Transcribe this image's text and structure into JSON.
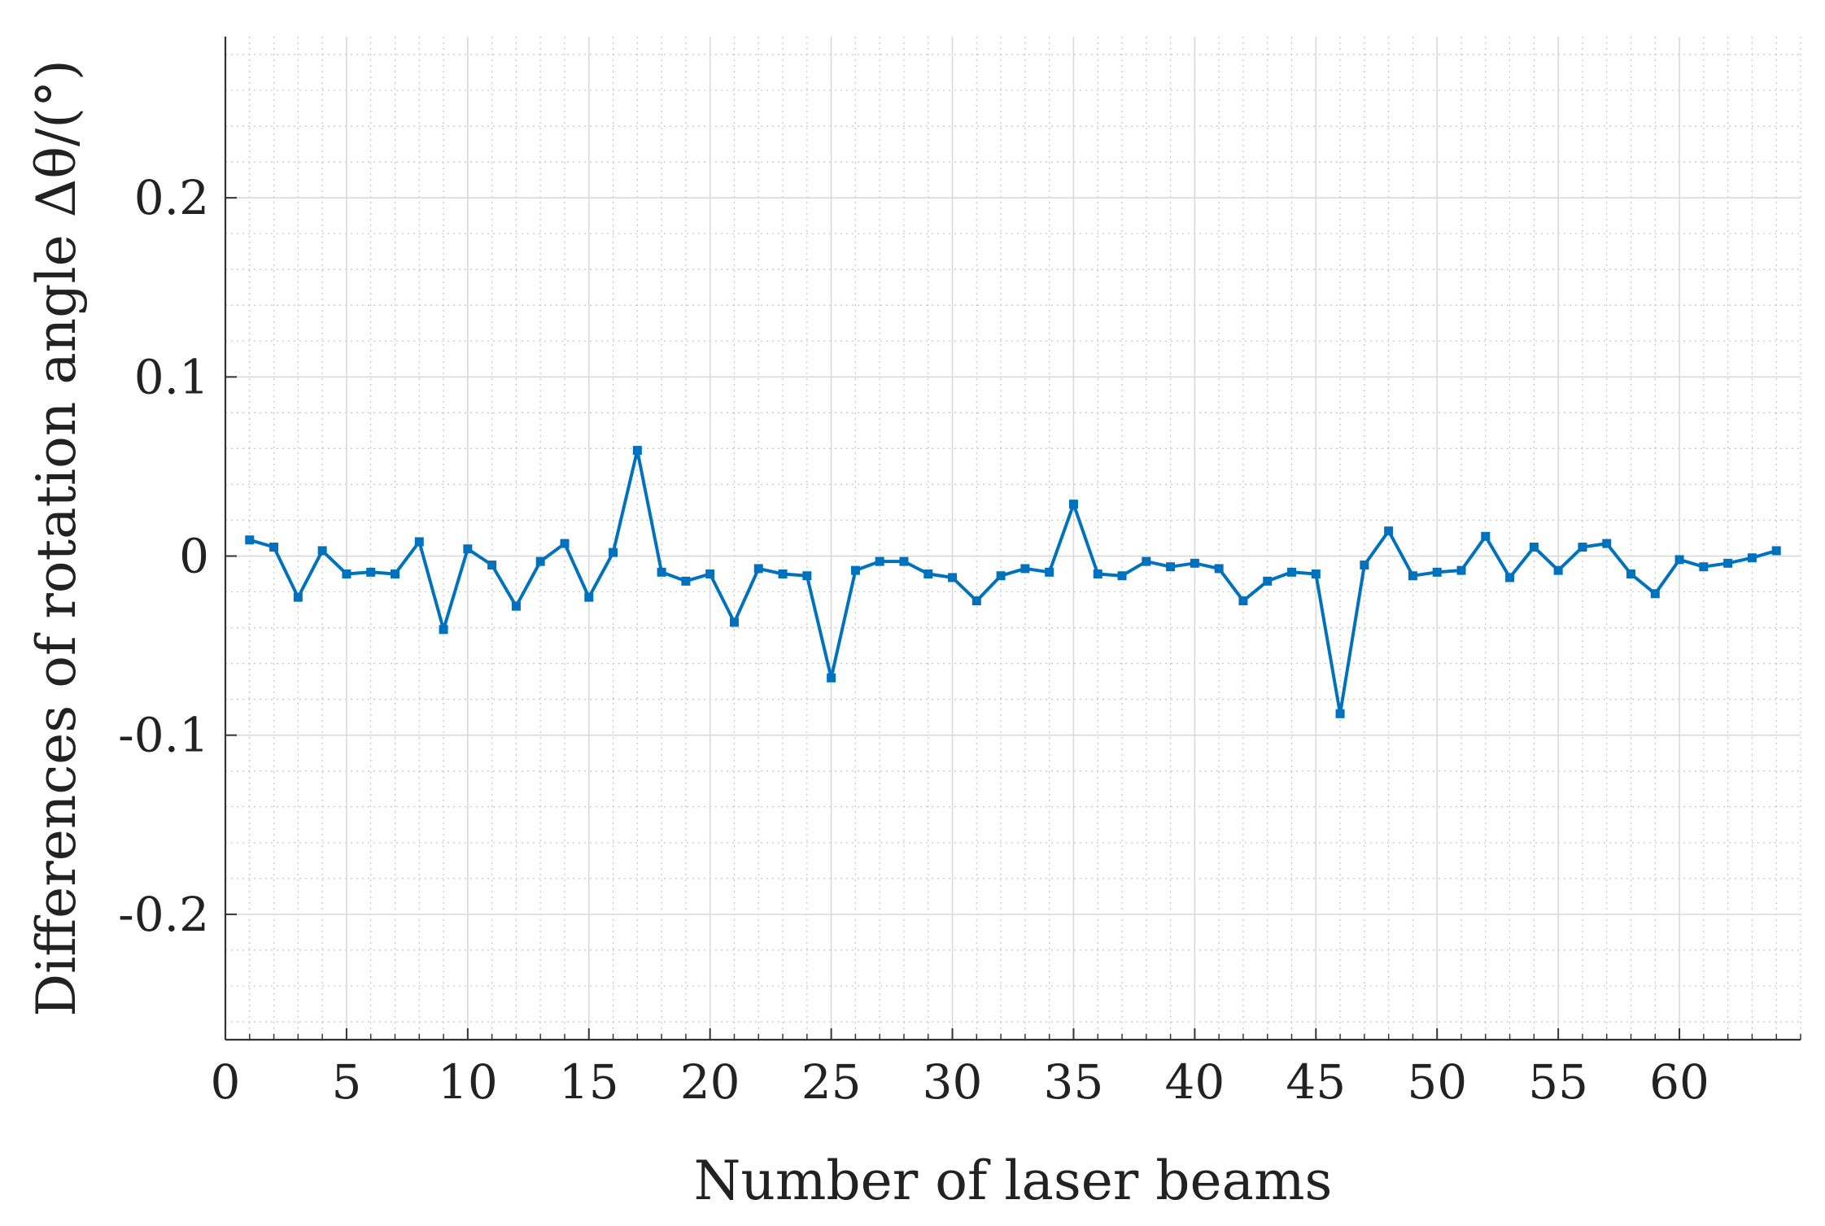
{
  "chart_data": {
    "type": "line",
    "xlabel": "Number of laser beams",
    "ylabel": "Differences of rotation angle Δθ/(°)",
    "xlim": [
      0,
      65
    ],
    "ylim": [
      -0.27,
      0.29
    ],
    "xticks": [
      0,
      5,
      10,
      15,
      20,
      25,
      30,
      35,
      40,
      45,
      50,
      55,
      60
    ],
    "xtick_labels": [
      "0",
      "5",
      "10",
      "15",
      "20",
      "25",
      "30",
      "35",
      "40",
      "45",
      "50",
      "55",
      "60"
    ],
    "yticks": [
      -0.2,
      -0.1,
      0,
      0.1,
      0.2
    ],
    "ytick_labels": [
      "-0.2",
      "-0.1",
      "0",
      "0.1",
      "0.2"
    ],
    "grid": true,
    "minor_grid": true,
    "line_color": "#0072BD",
    "series": [
      {
        "x": [
          1,
          2,
          3,
          4,
          5,
          6,
          7,
          8,
          9,
          10,
          11,
          12,
          13,
          14,
          15,
          16,
          17,
          18,
          19,
          20,
          21,
          22,
          23,
          24,
          25,
          26,
          27,
          28,
          29,
          30,
          31,
          32,
          33,
          34,
          35,
          36,
          37,
          38,
          39,
          40,
          41,
          42,
          43,
          44,
          45,
          46,
          47,
          48,
          49,
          50,
          51,
          52,
          53,
          54,
          55,
          56,
          57,
          58,
          59,
          60,
          61,
          62,
          63,
          64
        ],
        "values": [
          0.009,
          0.005,
          -0.023,
          0.003,
          -0.01,
          -0.009,
          -0.01,
          0.008,
          -0.041,
          0.004,
          -0.005,
          -0.028,
          -0.003,
          0.007,
          -0.023,
          0.002,
          0.059,
          -0.009,
          -0.014,
          -0.01,
          -0.037,
          -0.007,
          -0.01,
          -0.011,
          -0.068,
          -0.008,
          -0.003,
          -0.003,
          -0.01,
          -0.012,
          -0.025,
          -0.011,
          -0.007,
          -0.009,
          0.029,
          -0.01,
          -0.011,
          -0.003,
          -0.006,
          -0.004,
          -0.007,
          -0.025,
          -0.014,
          -0.009,
          -0.01,
          -0.088,
          -0.005,
          0.014,
          -0.011,
          -0.009,
          -0.008,
          0.011,
          -0.012,
          0.005,
          -0.008,
          0.005,
          0.007,
          -0.01,
          -0.021,
          -0.002,
          -0.006,
          -0.004,
          -0.001,
          0.003
        ]
      }
    ]
  }
}
